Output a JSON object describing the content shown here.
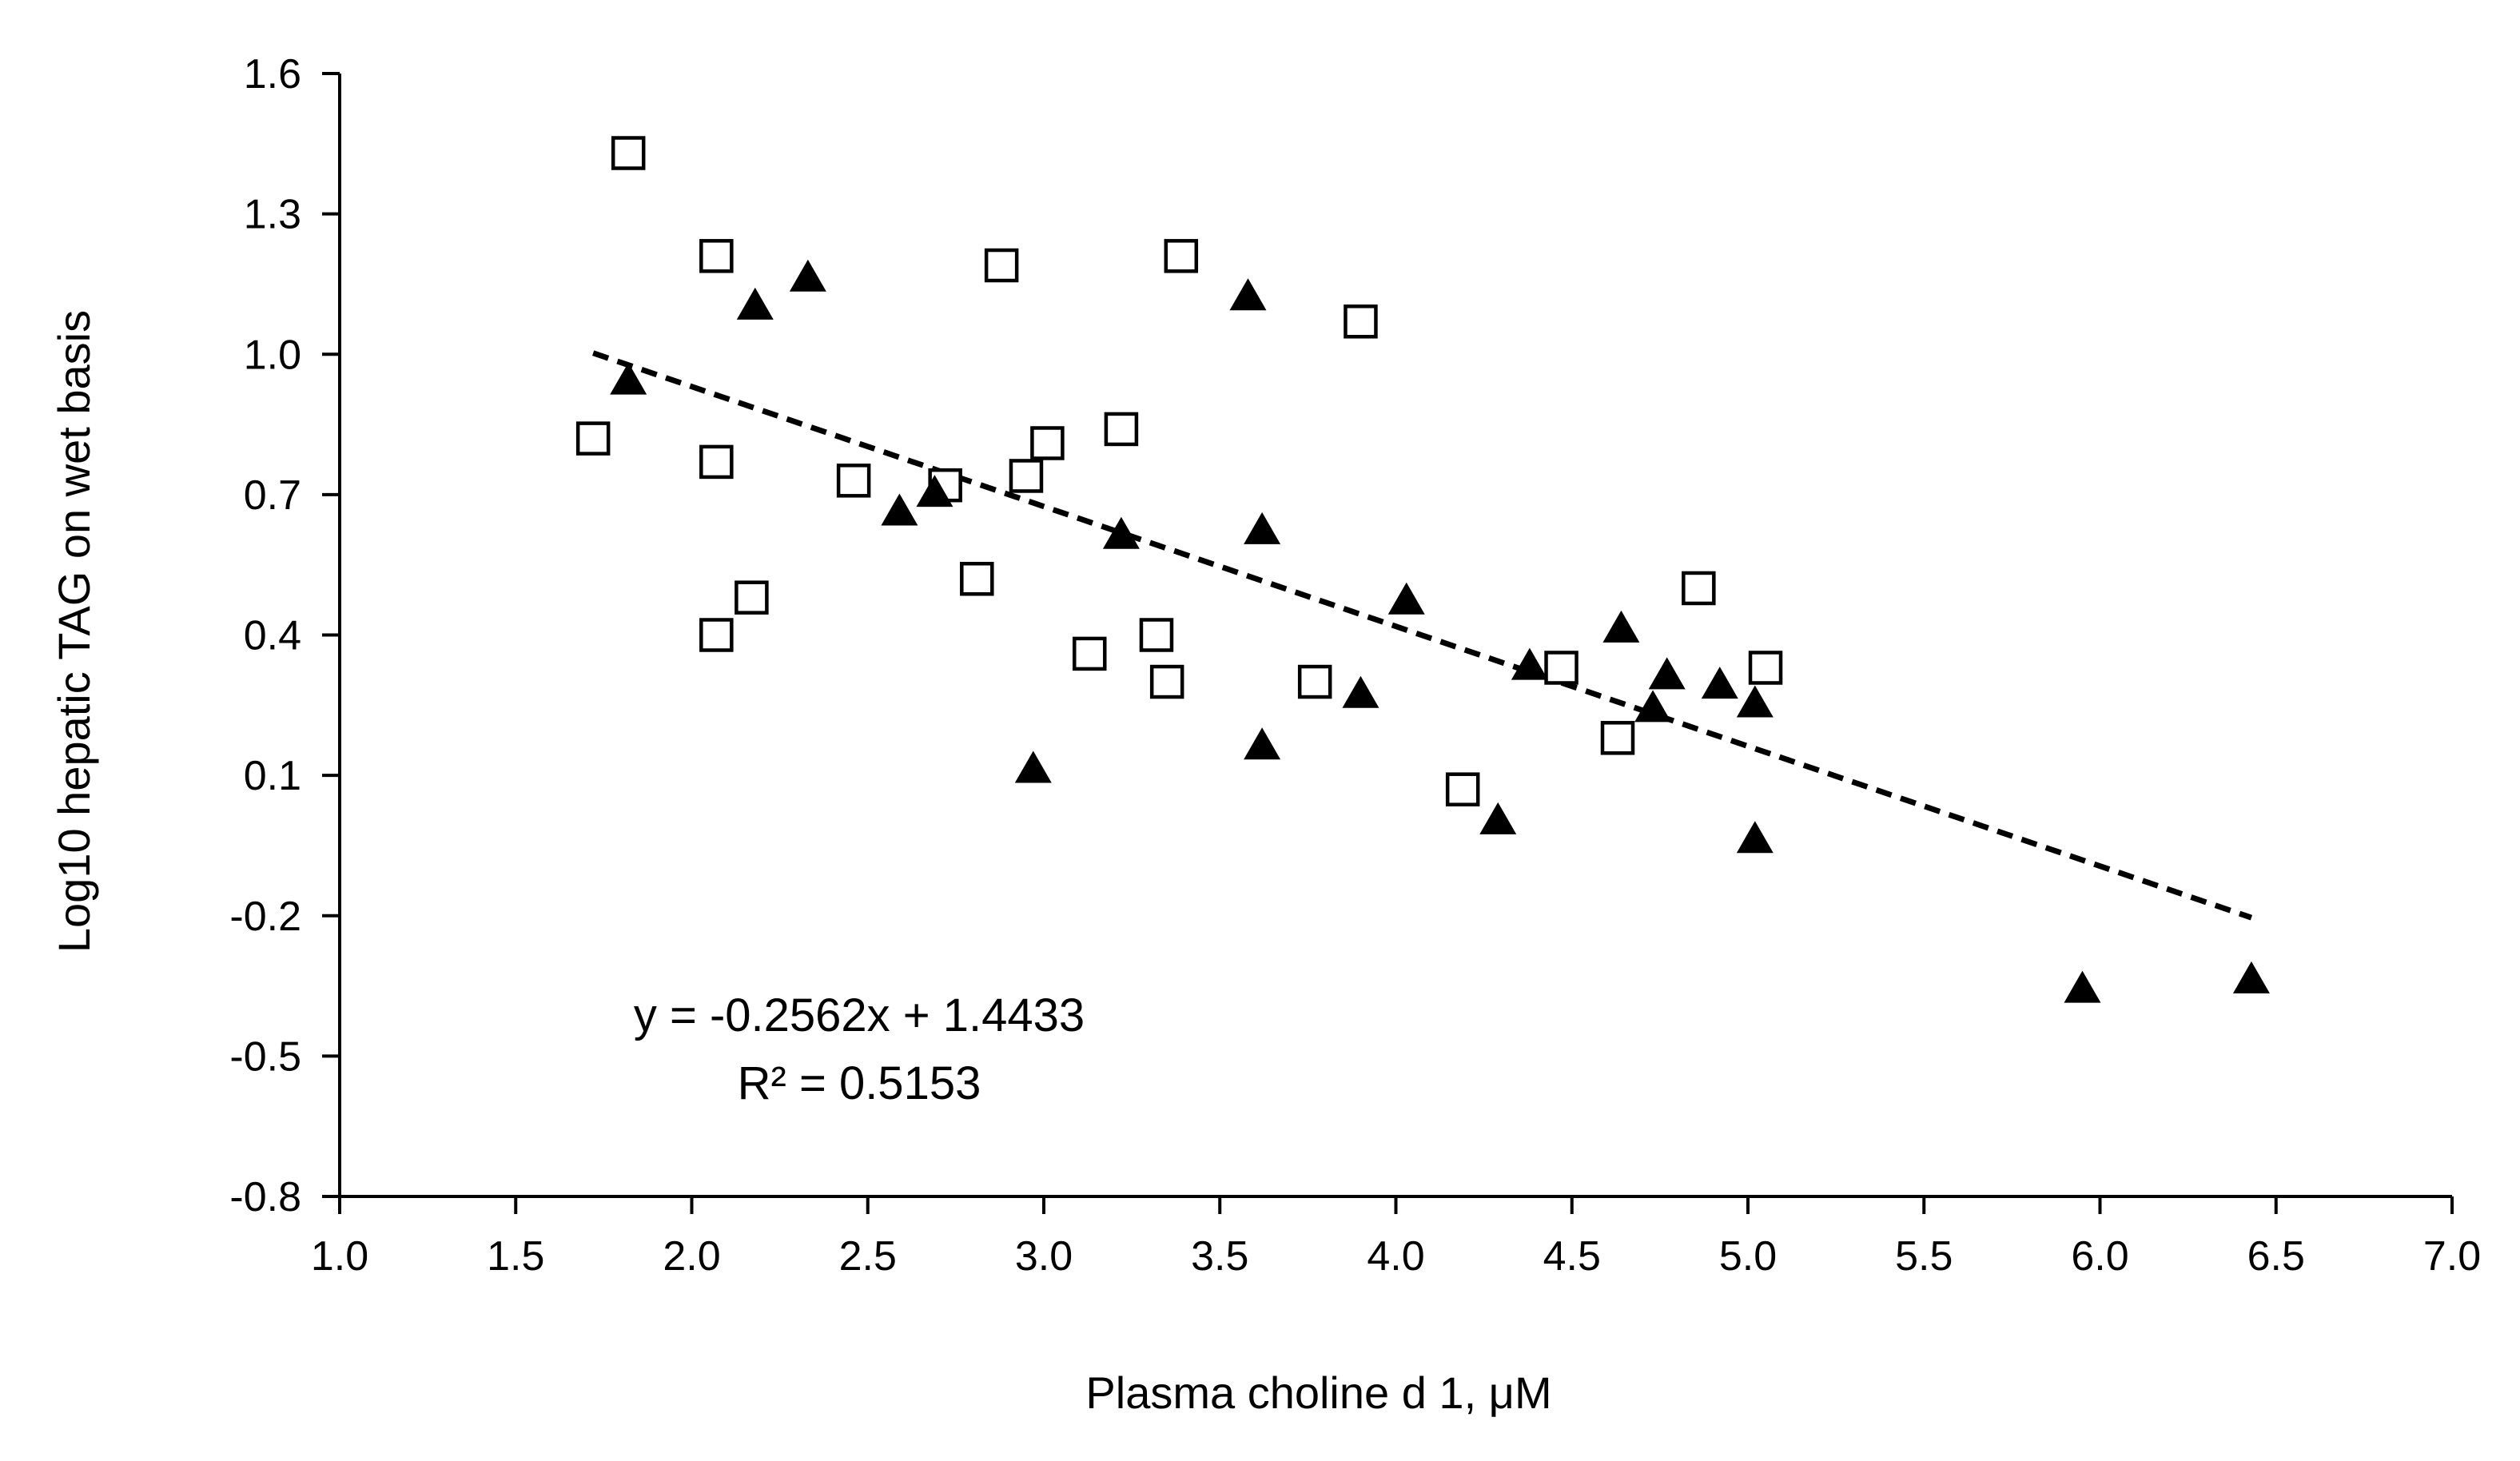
{
  "chart_data": {
    "type": "scatter",
    "title": "",
    "xlabel": "Plasma choline d 1, μM",
    "ylabel": "Log10 hepatic TAG on wet basis",
    "xlim": [
      1.0,
      7.0
    ],
    "ylim": [
      -0.8,
      1.6
    ],
    "xticks": [
      "1.0",
      "1.5",
      "2.0",
      "2.5",
      "3.0",
      "3.5",
      "4.0",
      "4.5",
      "5.0",
      "5.5",
      "6.0",
      "6.5",
      "7.0"
    ],
    "yticks": [
      "1.6",
      "1.3",
      "1.0",
      "0.7",
      "0.4",
      "0.1",
      "-0.2",
      "-0.5",
      "-0.8"
    ],
    "grid": false,
    "legend": "none",
    "series": [
      {
        "name": "open squares",
        "marker": "square-open",
        "color": "#000000",
        "points": [
          [
            1.72,
            0.82
          ],
          [
            1.82,
            1.43
          ],
          [
            2.07,
            1.21
          ],
          [
            2.07,
            0.77
          ],
          [
            2.07,
            0.4
          ],
          [
            2.17,
            0.48
          ],
          [
            2.46,
            0.73
          ],
          [
            2.72,
            0.72
          ],
          [
            2.81,
            0.52
          ],
          [
            2.88,
            1.19
          ],
          [
            2.95,
            0.74
          ],
          [
            3.01,
            0.81
          ],
          [
            3.13,
            0.36
          ],
          [
            3.22,
            0.84
          ],
          [
            3.32,
            0.4
          ],
          [
            3.35,
            0.3
          ],
          [
            3.39,
            1.21
          ],
          [
            3.77,
            0.3
          ],
          [
            3.9,
            1.07
          ],
          [
            4.19,
            0.07
          ],
          [
            4.47,
            0.33
          ],
          [
            4.63,
            0.18
          ],
          [
            4.86,
            0.5
          ],
          [
            5.05,
            0.33
          ]
        ]
      },
      {
        "name": "filled triangles",
        "marker": "triangle-filled",
        "color": "#000000",
        "points": [
          [
            1.82,
            0.94
          ],
          [
            2.18,
            1.1
          ],
          [
            2.33,
            1.16
          ],
          [
            2.59,
            0.66
          ],
          [
            2.69,
            0.7
          ],
          [
            2.97,
            0.11
          ],
          [
            3.22,
            0.61
          ],
          [
            3.58,
            1.12
          ],
          [
            3.62,
            0.62
          ],
          [
            3.62,
            0.16
          ],
          [
            3.9,
            0.27
          ],
          [
            4.03,
            0.47
          ],
          [
            4.29,
            0.0
          ],
          [
            4.38,
            0.33
          ],
          [
            4.64,
            0.41
          ],
          [
            4.73,
            0.24
          ],
          [
            4.77,
            0.31
          ],
          [
            4.92,
            0.29
          ],
          [
            5.02,
            0.25
          ],
          [
            5.02,
            -0.04
          ],
          [
            5.95,
            -0.36
          ],
          [
            6.43,
            -0.34
          ]
        ]
      }
    ],
    "trendline": {
      "type": "linear",
      "slope": -0.2562,
      "intercept": 1.4433,
      "x_range": [
        1.72,
        6.43
      ],
      "style": "dashed",
      "equation_label": "y = -0.2562x + 1.4433",
      "r2_label": "R² = 0.5153"
    }
  }
}
